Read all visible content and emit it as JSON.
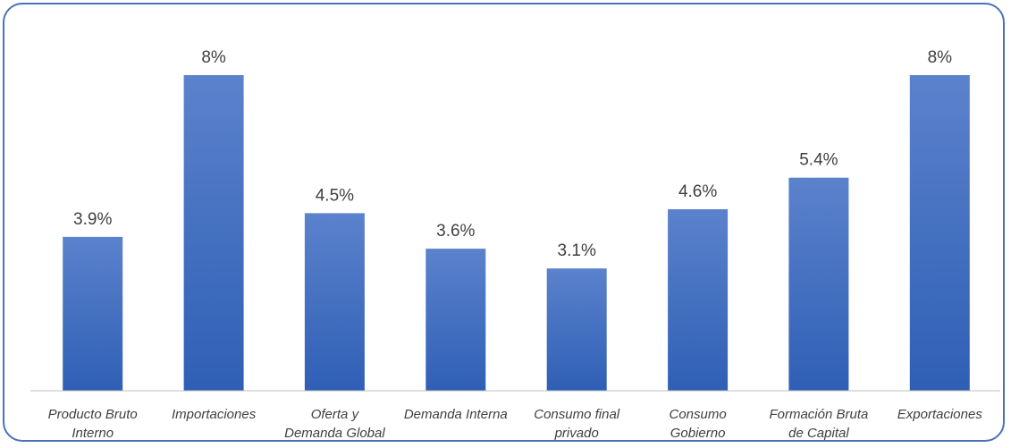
{
  "chart_data": {
    "type": "bar",
    "categories": [
      [
        "Producto Bruto",
        "Interno"
      ],
      [
        "Importaciones"
      ],
      [
        "Oferta y",
        "Demanda Global"
      ],
      [
        "Demanda Interna"
      ],
      [
        "Consumo final",
        "privado"
      ],
      [
        "Consumo",
        "Gobierno"
      ],
      [
        "Formación Bruta",
        "de Capital"
      ],
      [
        "Exportaciones"
      ]
    ],
    "values": [
      3.9,
      8,
      4.5,
      3.6,
      3.1,
      4.6,
      5.4,
      8
    ],
    "data_labels": [
      "3.9%",
      "8%",
      "4.5%",
      "3.6%",
      "3.1%",
      "4.6%",
      "5.4%",
      "8%"
    ],
    "title": "",
    "xlabel": "",
    "ylabel": "",
    "ylim": [
      0,
      8
    ],
    "grid": false,
    "legend": "none",
    "colors": {
      "bar_top": "#5b82cc",
      "bar_bottom": "#2f5fb5",
      "frame_border": "#4a72b8",
      "axis_line": "#bfbfbf",
      "text": "#404040"
    }
  }
}
